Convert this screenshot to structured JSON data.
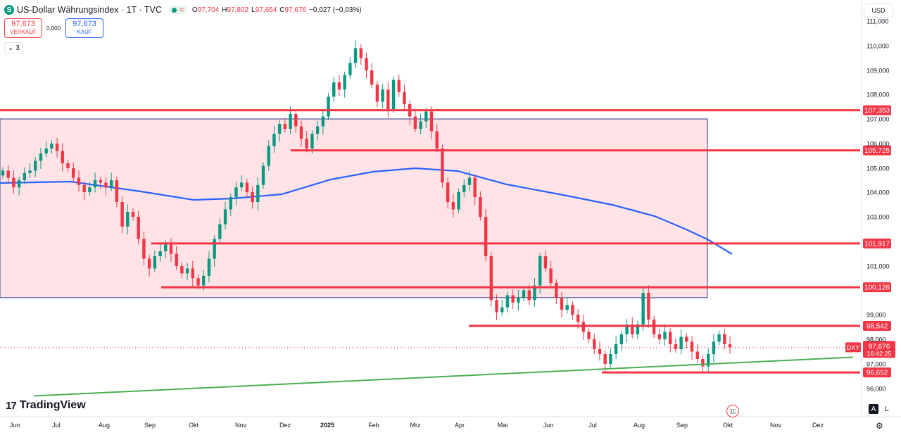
{
  "header": {
    "symbol_icon": "S",
    "title": "US-Dollar Währungsindex · 1T · TVC",
    "open_label": "O",
    "open": "97,704",
    "high_label": "H",
    "high": "97,802",
    "low_label": "L",
    "low": "97,654",
    "close_label": "C",
    "close": "97,676",
    "change": "−0,027 (−0,03%)"
  },
  "trade": {
    "sell_price": "97,673",
    "sell_label": "VERKAUF",
    "spread": "0,000",
    "buy_price": "97,673",
    "buy_label": "KAUF"
  },
  "indicators": {
    "collapse_icon": "chevron-down-icon",
    "count": "3"
  },
  "currency": "USD",
  "branding": "TradingView",
  "scale_buttons": [
    "A",
    "L"
  ],
  "icons": [
    "settings-icon",
    "us-flag-icon"
  ],
  "colors": {
    "up": "#089981",
    "down": "#f23645",
    "level": "#f23645",
    "ma": "#2962ff",
    "trend": "#4caf50",
    "zone": "#ffe3e6"
  },
  "chart_data": {
    "type": "candlestick",
    "x_labels": [
      "Jun",
      "Jul",
      "Aug",
      "Sep",
      "Okt",
      "Nov",
      "Dez",
      "2025",
      "Feb",
      "Mrz",
      "Apr",
      "Mai",
      "Jun",
      "Jul",
      "Aug",
      "Sep",
      "Okt",
      "Nov",
      "Dez"
    ],
    "y_ticks": [
      "111,000",
      "110,000",
      "109,000",
      "108,000",
      "107,000",
      "106,000",
      "105,000",
      "104,000",
      "103,000",
      "101,000",
      "99,000",
      "98,000",
      "97,000",
      "96,000"
    ],
    "ylim": [
      95.5,
      111.3
    ],
    "horizontal_levels": [
      {
        "label": "107,353",
        "value": 107.353,
        "from": "Jun",
        "to": "Okt"
      },
      {
        "label": "105,725",
        "value": 105.725,
        "from": "Dez",
        "to": "Okt"
      },
      {
        "label": "101,917",
        "value": 101.917,
        "from": "Sep",
        "to": "Okt"
      },
      {
        "label": "100,126",
        "value": 100.126,
        "from": "Sep",
        "to": "Okt"
      },
      {
        "label": "98,542",
        "value": 98.542,
        "from": "Apr",
        "to": "Okt"
      },
      {
        "label": "96,652",
        "value": 96.652,
        "from": "Jul",
        "to": "Okt"
      }
    ],
    "zone": {
      "top": 107.0,
      "bottom": 99.7,
      "from": "Jun",
      "to": "Sep"
    },
    "trend_line": {
      "start": {
        "x": "Jun",
        "y": 95.7
      },
      "end": {
        "x": "Okt",
        "y": 97.5
      }
    },
    "current_price": {
      "symbol": "DXY",
      "value": "97,676",
      "countdown": "16:42:25"
    },
    "closes": [
      104.9,
      104.6,
      104.2,
      104.5,
      104.8,
      104.9,
      105.3,
      105.6,
      105.8,
      106.0,
      105.7,
      105.2,
      105.0,
      104.6,
      104.3,
      104.0,
      104.2,
      104.5,
      104.4,
      104.2,
      104.5,
      103.6,
      102.6,
      103.2,
      103.0,
      102.1,
      101.3,
      100.9,
      101.4,
      101.6,
      101.9,
      101.5,
      101.0,
      100.7,
      100.9,
      100.5,
      100.2,
      100.6,
      101.3,
      102.1,
      102.7,
      103.3,
      103.8,
      104.2,
      104.4,
      104.0,
      103.6,
      104.3,
      105.1,
      105.9,
      106.4,
      106.8,
      106.6,
      107.2,
      106.7,
      106.2,
      105.8,
      106.4,
      106.7,
      107.1,
      107.9,
      108.5,
      108.2,
      108.8,
      109.3,
      109.9,
      109.5,
      109.0,
      108.4,
      107.7,
      108.2,
      107.4,
      108.6,
      108.1,
      107.6,
      107.1,
      106.6,
      106.9,
      107.3,
      106.5,
      105.8,
      104.4,
      103.6,
      103.3,
      104.0,
      104.3,
      104.6,
      103.8,
      103.0,
      101.4,
      99.6,
      99.1,
      99.3,
      99.8,
      99.5,
      99.7,
      100.0,
      99.6,
      100.2,
      101.4,
      100.9,
      100.3,
      99.7,
      99.2,
      99.4,
      99.0,
      98.7,
      98.3,
      98.0,
      97.6,
      97.4,
      97.0,
      97.4,
      97.8,
      98.2,
      98.6,
      98.2,
      98.6,
      99.9,
      98.8,
      98.2,
      98.0,
      98.3,
      97.8,
      97.6,
      98.1,
      97.9,
      97.5,
      97.2,
      96.9,
      97.4,
      97.9,
      98.2,
      97.8,
      97.68
    ]
  }
}
